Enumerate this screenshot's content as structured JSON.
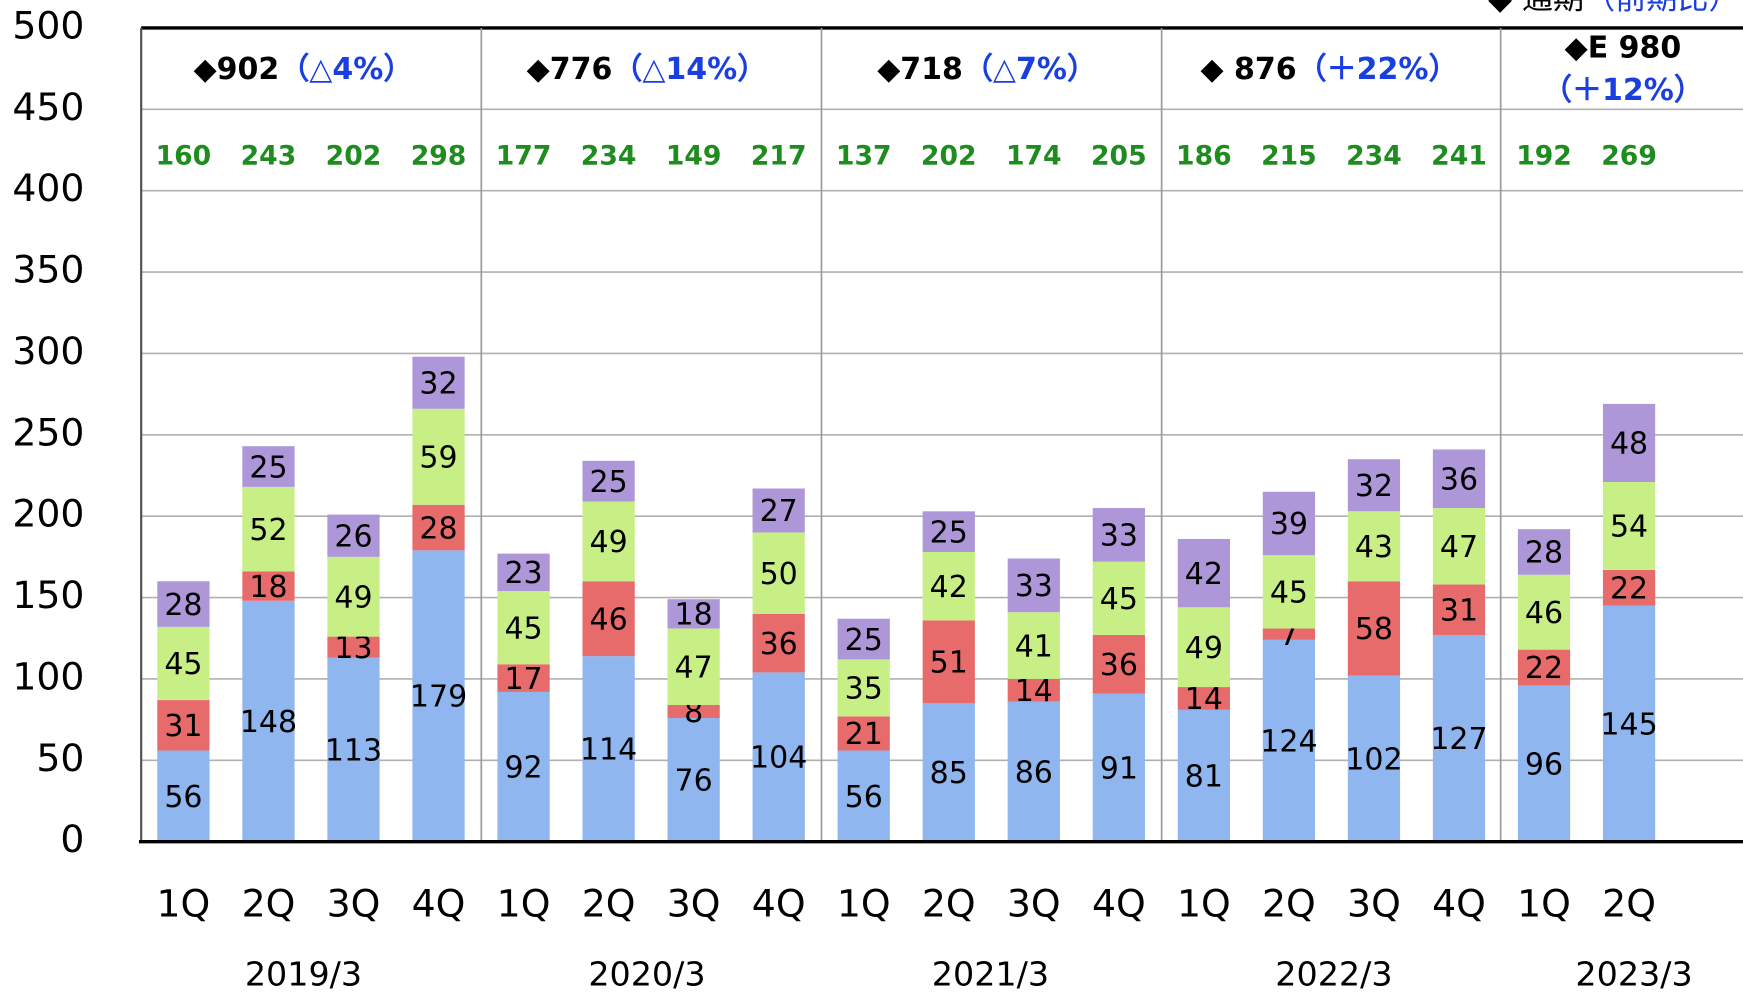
{
  "chart_data": {
    "type": "stacked_bar",
    "header_note": {
      "marker": "◆ 通期",
      "paren": "（前期比）"
    },
    "categories": [
      "1Q",
      "2Q",
      "3Q",
      "4Q",
      "1Q",
      "2Q",
      "3Q",
      "4Q",
      "1Q",
      "2Q",
      "3Q",
      "4Q",
      "1Q",
      "2Q",
      "3Q",
      "4Q",
      "1Q",
      "2Q"
    ],
    "groups": [
      {
        "label": "2019/3",
        "total": "◆902",
        "change": "（△4%）"
      },
      {
        "label": "2020/3",
        "total": "◆776",
        "change": "（△14%）"
      },
      {
        "label": "2021/3",
        "total": "◆718",
        "change": "（△7%）"
      },
      {
        "label": "2022/3",
        "total": "◆ 876",
        "change": "（＋22%）"
      },
      {
        "label": "2023/3",
        "total": "◆E 980",
        "change": "（＋12%）"
      }
    ],
    "totals": [
      160,
      243,
      202,
      298,
      177,
      234,
      149,
      217,
      137,
      202,
      174,
      205,
      186,
      215,
      234,
      241,
      192,
      269
    ],
    "series": [
      {
        "color": "#8fb6ef",
        "values": [
          56,
          148,
          113,
          179,
          92,
          114,
          76,
          104,
          56,
          85,
          86,
          91,
          81,
          124,
          102,
          127,
          96,
          145
        ]
      },
      {
        "color": "#e86b6b",
        "values": [
          31,
          18,
          13,
          28,
          17,
          46,
          8,
          36,
          21,
          51,
          14,
          36,
          14,
          7,
          58,
          31,
          22,
          22
        ]
      },
      {
        "color": "#c8ef86",
        "values": [
          45,
          52,
          49,
          59,
          45,
          49,
          47,
          50,
          35,
          42,
          41,
          45,
          49,
          45,
          43,
          47,
          46,
          54
        ]
      },
      {
        "color": "#ad97d8",
        "values": [
          28,
          25,
          26,
          32,
          23,
          25,
          18,
          27,
          25,
          25,
          33,
          33,
          42,
          39,
          32,
          36,
          28,
          48
        ]
      }
    ],
    "ylim": [
      0,
      500
    ],
    "yticks": [
      0,
      50,
      100,
      150,
      200,
      250,
      300,
      350,
      400,
      450,
      500
    ],
    "grid": true
  }
}
